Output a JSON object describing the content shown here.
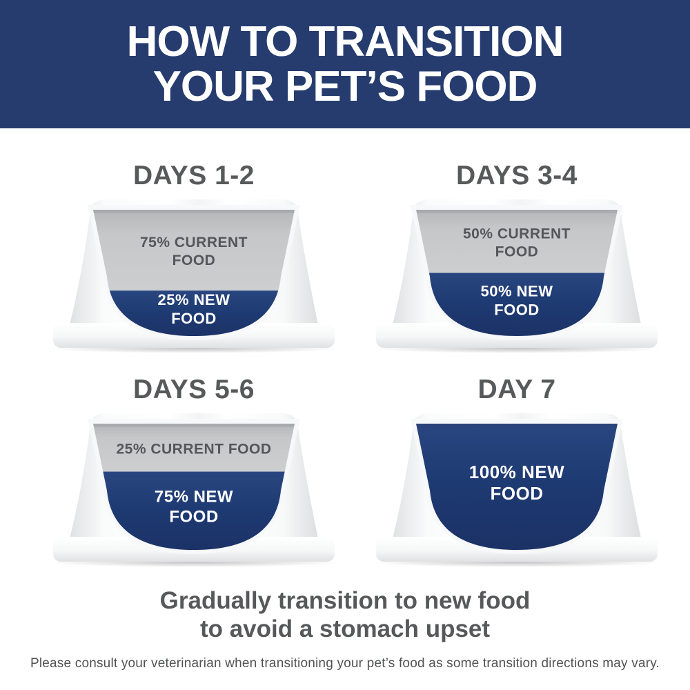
{
  "header": {
    "line1": "HOW TO TRANSITION",
    "line2": "YOUR PET’S FOOD"
  },
  "bowls": [
    {
      "title": "DAYS 1-2",
      "current_pct": 75,
      "new_pct": 25,
      "current_label_lines": [
        "75% CURRENT",
        "FOOD"
      ],
      "new_label_lines": [
        "25% NEW",
        "FOOD"
      ]
    },
    {
      "title": "DAYS 3-4",
      "current_pct": 50,
      "new_pct": 50,
      "current_label_lines": [
        "50% CURRENT",
        "FOOD"
      ],
      "new_label_lines": [
        "50% NEW",
        "FOOD"
      ]
    },
    {
      "title": "DAYS 5-6",
      "current_pct": 25,
      "new_pct": 75,
      "current_label_lines": [
        "25% CURRENT FOOD"
      ],
      "new_label_lines": [
        "75% NEW",
        "FOOD"
      ]
    },
    {
      "title": "DAY 7",
      "current_pct": 0,
      "new_pct": 100,
      "current_label_lines": [],
      "new_label_lines": [
        "100% NEW",
        "FOOD"
      ]
    }
  ],
  "footer": {
    "tagline_line1": "Gradually transition to new food",
    "tagline_line2": "to avoid a stomach upset",
    "disclaimer": "Please consult your veterinarian when transitioning your pet’s food as some transition directions may vary."
  },
  "colors": {
    "banner_navy": "#263c6f",
    "food_navy": "#1e3a72",
    "food_navy_dark": "#1b3165",
    "food_navy_light": "#2a4680",
    "food_gray": "#c6c7c9",
    "food_gray_dark": "#b5b6b8",
    "food_gray_light": "#cdced0",
    "bowl_edge": "#dfe1e3",
    "bowl_white": "#ffffff",
    "inner_wall": "#f7f8fa",
    "label_gray": "#55565a",
    "label_white": "#ffffff"
  }
}
